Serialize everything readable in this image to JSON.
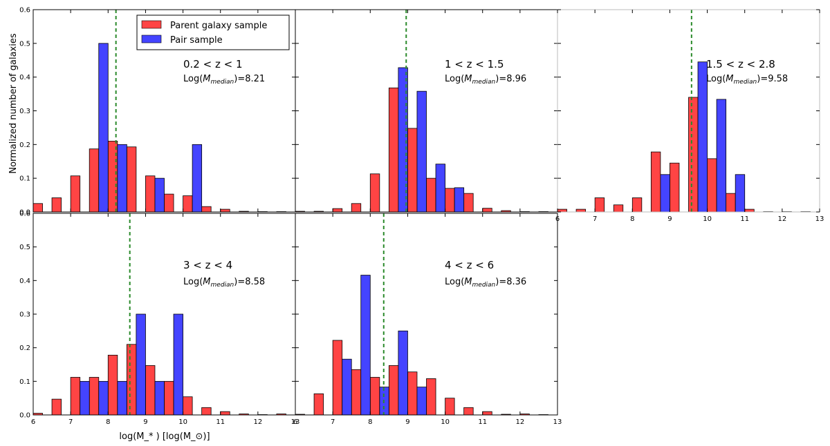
{
  "chart_data": {
    "type": "bar",
    "title": "",
    "xlabel": "log(M_* ) [log(M_⊙)]",
    "ylabel": "Normalized number of galaxies",
    "xlim": [
      6,
      13
    ],
    "ylim": [
      0,
      0.6
    ],
    "x_ticks": [
      6,
      7,
      8,
      9,
      10,
      11,
      12,
      13
    ],
    "y_ticks": [
      0.0,
      0.1,
      0.2,
      0.3,
      0.4,
      0.5,
      0.6
    ],
    "bin_width": 0.5,
    "colors": {
      "parent": "#ff4444",
      "pair": "#4444ff",
      "median": "#2a8a2a"
    },
    "legend": {
      "entries": [
        "Parent galaxy sample",
        "Pair sample"
      ],
      "placement": "top-left of first panel"
    },
    "panels": [
      {
        "name": "0.2 < z < 1",
        "range_label": "0.2 < z < 1",
        "median_label": "=8.21",
        "median": 8.21,
        "series": [
          {
            "name": "Parent galaxy sample",
            "x": [
              6.0,
              6.5,
              7.0,
              7.5,
              8.0,
              8.5,
              9.0,
              9.5,
              10.0,
              10.5,
              11.0,
              11.5,
              12.0,
              12.5
            ],
            "values": [
              0.025,
              0.042,
              0.107,
              0.187,
              0.21,
              0.193,
              0.107,
              0.053,
              0.048,
              0.016,
              0.008,
              0.002,
              0.001,
              0.001
            ]
          },
          {
            "name": "Pair sample",
            "x": [
              7.5,
              8.0,
              9.0,
              10.0
            ],
            "values": [
              0.5,
              0.2,
              0.1,
              0.2
            ]
          }
        ]
      },
      {
        "name": "1 < z < 1.5",
        "range_label": "1 < z < 1.5",
        "median_label": "=8.96",
        "median": 8.96,
        "series": [
          {
            "name": "Parent galaxy sample",
            "x": [
              6.0,
              6.5,
              7.0,
              7.5,
              8.0,
              8.5,
              9.0,
              9.5,
              10.0,
              10.5,
              11.0,
              11.5,
              12.0,
              12.5
            ],
            "values": [
              0.002,
              0.002,
              0.01,
              0.025,
              0.113,
              0.368,
              0.248,
              0.1,
              0.07,
              0.055,
              0.011,
              0.004,
              0.001,
              0.001
            ]
          },
          {
            "name": "Pair sample",
            "x": [
              8.5,
              9.0,
              9.5,
              10.0
            ],
            "values": [
              0.428,
              0.358,
              0.142,
              0.072
            ]
          }
        ]
      },
      {
        "name": "1.5 < z < 2.8",
        "range_label": "1.5 < z < 2.8",
        "median_label": "=9.58",
        "median": 9.58,
        "series": [
          {
            "name": "Parent galaxy sample",
            "x": [
              6.0,
              6.5,
              7.0,
              7.5,
              8.0,
              8.5,
              9.0,
              9.5,
              10.0,
              10.5,
              11.0,
              11.5,
              12.0,
              12.5
            ],
            "values": [
              0.008,
              0.008,
              0.042,
              0.021,
              0.042,
              0.178,
              0.145,
              0.34,
              0.158,
              0.055,
              0.008,
              0.001,
              0.001,
              0.001
            ]
          },
          {
            "name": "Pair sample",
            "x": [
              8.5,
              9.5,
              10.0,
              10.5
            ],
            "values": [
              0.111,
              0.445,
              0.334,
              0.111
            ]
          }
        ]
      },
      {
        "name": "3 < z < 4",
        "range_label": "3 < z < 4",
        "median_label": "=8.58",
        "median": 8.58,
        "series": [
          {
            "name": "Parent galaxy sample",
            "x": [
              6.0,
              6.5,
              7.0,
              7.5,
              8.0,
              8.5,
              9.0,
              9.5,
              10.0,
              10.5,
              11.0,
              11.5,
              12.0,
              12.5
            ],
            "values": [
              0.005,
              0.047,
              0.112,
              0.112,
              0.178,
              0.21,
              0.147,
              0.1,
              0.054,
              0.022,
              0.01,
              0.003,
              0.001,
              0.003
            ]
          },
          {
            "name": "Pair sample",
            "x": [
              7.0,
              7.5,
              8.0,
              8.5,
              9.0,
              9.5
            ],
            "values": [
              0.1,
              0.1,
              0.1,
              0.3,
              0.1,
              0.3
            ]
          }
        ]
      },
      {
        "name": "4 < z < 6",
        "range_label": "4 < z < 6",
        "median_label": "=8.36",
        "median": 8.36,
        "series": [
          {
            "name": "Parent galaxy sample",
            "x": [
              6.0,
              6.5,
              7.0,
              7.5,
              8.0,
              8.5,
              9.0,
              9.5,
              10.0,
              10.5,
              11.0,
              11.5,
              12.0,
              12.5
            ],
            "values": [
              0.002,
              0.063,
              0.222,
              0.135,
              0.112,
              0.147,
              0.128,
              0.108,
              0.05,
              0.022,
              0.01,
              0.002,
              0.003,
              0.001
            ]
          },
          {
            "name": "Pair sample",
            "x": [
              7.0,
              7.5,
              8.0,
              8.5,
              9.0
            ],
            "values": [
              0.166,
              0.416,
              0.083,
              0.25,
              0.083
            ]
          }
        ]
      }
    ]
  }
}
